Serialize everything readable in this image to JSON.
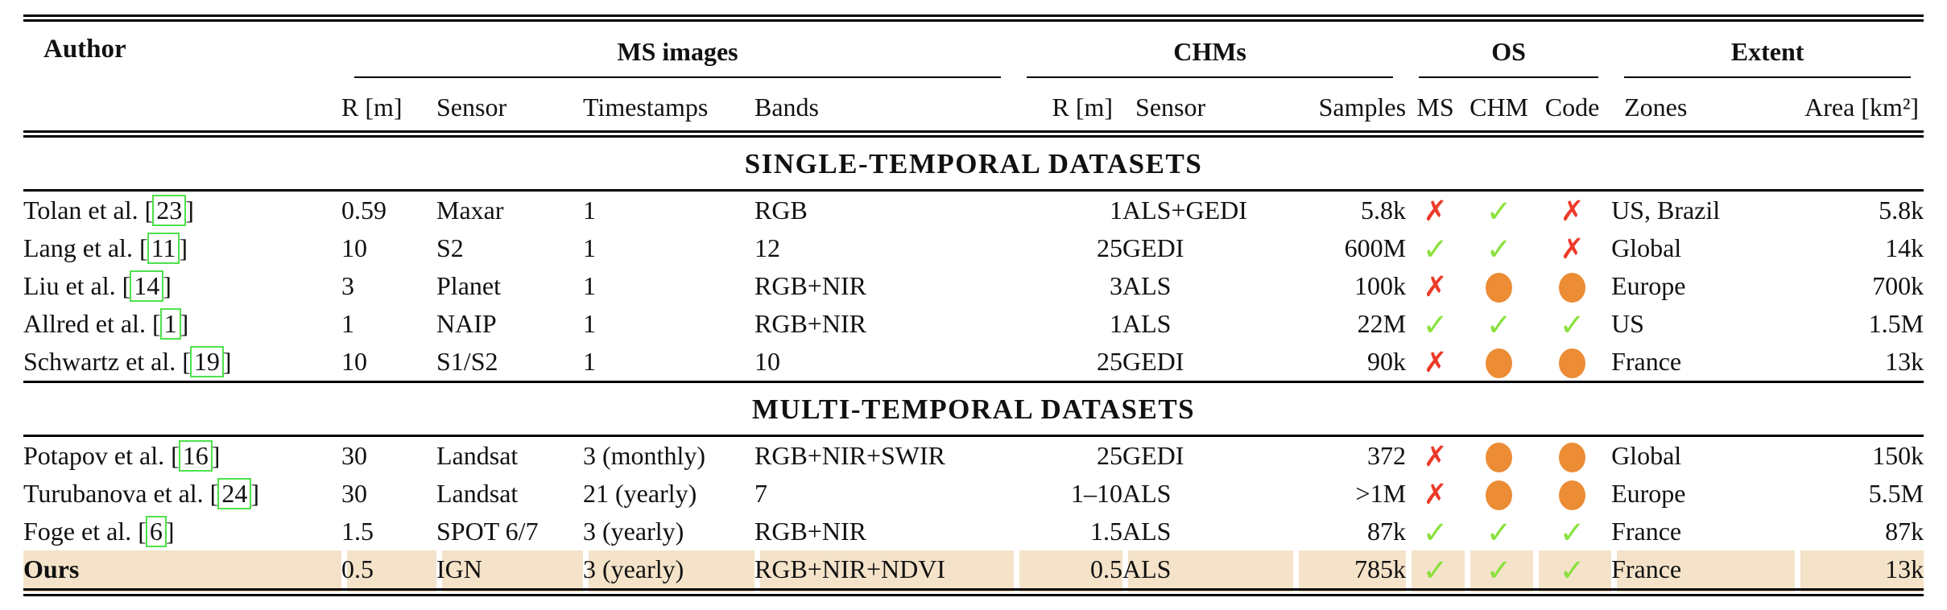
{
  "table": {
    "author_header": "Author",
    "groups": [
      {
        "label": "MS images"
      },
      {
        "label": "CHMs"
      },
      {
        "label": "OS"
      },
      {
        "label": "Extent"
      }
    ],
    "subheaders": [
      "R [m]",
      "Sensor",
      "Timestamps",
      "Bands",
      "R [m]",
      "Sensor",
      "Samples",
      "MS",
      "CHM",
      "Code",
      "Zones",
      "Area [km²]"
    ],
    "icons": {
      "check": "✓",
      "cross": "✗",
      "circle": "●"
    },
    "colors": {
      "check_green": "#8ae13c",
      "cross_red": "#ec3a28",
      "circle_orange": "#ec8c35",
      "highlight_beige": "#f4e3c9",
      "citation_green": "#4ee24a"
    },
    "sections": [
      {
        "title": "SINGLE-TEMPORAL DATASETS",
        "rows": [
          {
            "author": "Tolan et al.",
            "cite": "23",
            "ms_r": "0.59",
            "ms_sensor": "Maxar",
            "timestamps": "1",
            "bands": "RGB",
            "chm_r": "1",
            "chm_sensor": "ALS+GEDI",
            "samples": "5.8k",
            "os_ms": "cross",
            "os_chm": "check",
            "os_code": "cross",
            "zones": "US, Brazil",
            "area": "5.8k",
            "highlight": false
          },
          {
            "author": "Lang et al.",
            "cite": "11",
            "ms_r": "10",
            "ms_sensor": "S2",
            "timestamps": "1",
            "bands": "12",
            "chm_r": "25",
            "chm_sensor": "GEDI",
            "samples": "600M",
            "os_ms": "check",
            "os_chm": "check",
            "os_code": "cross",
            "zones": "Global",
            "area": "14k",
            "highlight": false
          },
          {
            "author": "Liu et al.",
            "cite": "14",
            "ms_r": "3",
            "ms_sensor": "Planet",
            "timestamps": "1",
            "bands": "RGB+NIR",
            "chm_r": "3",
            "chm_sensor": "ALS",
            "samples": "100k",
            "os_ms": "cross",
            "os_chm": "circle",
            "os_code": "circle",
            "zones": "Europe",
            "area": "700k",
            "highlight": false
          },
          {
            "author": "Allred et al.",
            "cite": "1",
            "ms_r": "1",
            "ms_sensor": "NAIP",
            "timestamps": "1",
            "bands": "RGB+NIR",
            "chm_r": "1",
            "chm_sensor": "ALS",
            "samples": "22M",
            "os_ms": "check",
            "os_chm": "check",
            "os_code": "check",
            "zones": "US",
            "area": "1.5M",
            "highlight": false
          },
          {
            "author": "Schwartz et al.",
            "cite": "19",
            "ms_r": "10",
            "ms_sensor": "S1/S2",
            "timestamps": "1",
            "bands": "10",
            "chm_r": "25",
            "chm_sensor": "GEDI",
            "samples": "90k",
            "os_ms": "cross",
            "os_chm": "circle",
            "os_code": "circle",
            "zones": "France",
            "area": "13k",
            "highlight": false
          }
        ]
      },
      {
        "title": "MULTI-TEMPORAL DATASETS",
        "rows": [
          {
            "author": "Potapov et al.",
            "cite": "16",
            "ms_r": "30",
            "ms_sensor": "Landsat",
            "timestamps": "3 (monthly)",
            "bands": "RGB+NIR+SWIR",
            "chm_r": "25",
            "chm_sensor": "GEDI",
            "samples": "372",
            "os_ms": "cross",
            "os_chm": "circle",
            "os_code": "circle",
            "zones": "Global",
            "area": "150k",
            "highlight": false
          },
          {
            "author": "Turubanova et al.",
            "cite": "24",
            "ms_r": "30",
            "ms_sensor": "Landsat",
            "timestamps": "21 (yearly)",
            "bands": "7",
            "chm_r": "1–10",
            "chm_sensor": "ALS",
            "samples": ">1M",
            "os_ms": "cross",
            "os_chm": "circle",
            "os_code": "circle",
            "zones": "Europe",
            "area": "5.5M",
            "highlight": false
          },
          {
            "author": "Foge et al.",
            "cite": "6",
            "ms_r": "1.5",
            "ms_sensor": "SPOT 6/7",
            "timestamps": "3 (yearly)",
            "bands": "RGB+NIR",
            "chm_r": "1.5",
            "chm_sensor": "ALS",
            "samples": "87k",
            "os_ms": "check",
            "os_chm": "check",
            "os_code": "check",
            "zones": "France",
            "area": "87k",
            "highlight": false
          },
          {
            "author": "Ours",
            "cite": null,
            "ms_r": "0.5",
            "ms_sensor": "IGN",
            "timestamps": "3 (yearly)",
            "bands": "RGB+NIR+NDVI",
            "chm_r": "0.5",
            "chm_sensor": "ALS",
            "samples": "785k",
            "os_ms": "check",
            "os_chm": "check",
            "os_code": "check",
            "zones": "France",
            "area": "13k",
            "highlight": true
          }
        ]
      }
    ]
  }
}
